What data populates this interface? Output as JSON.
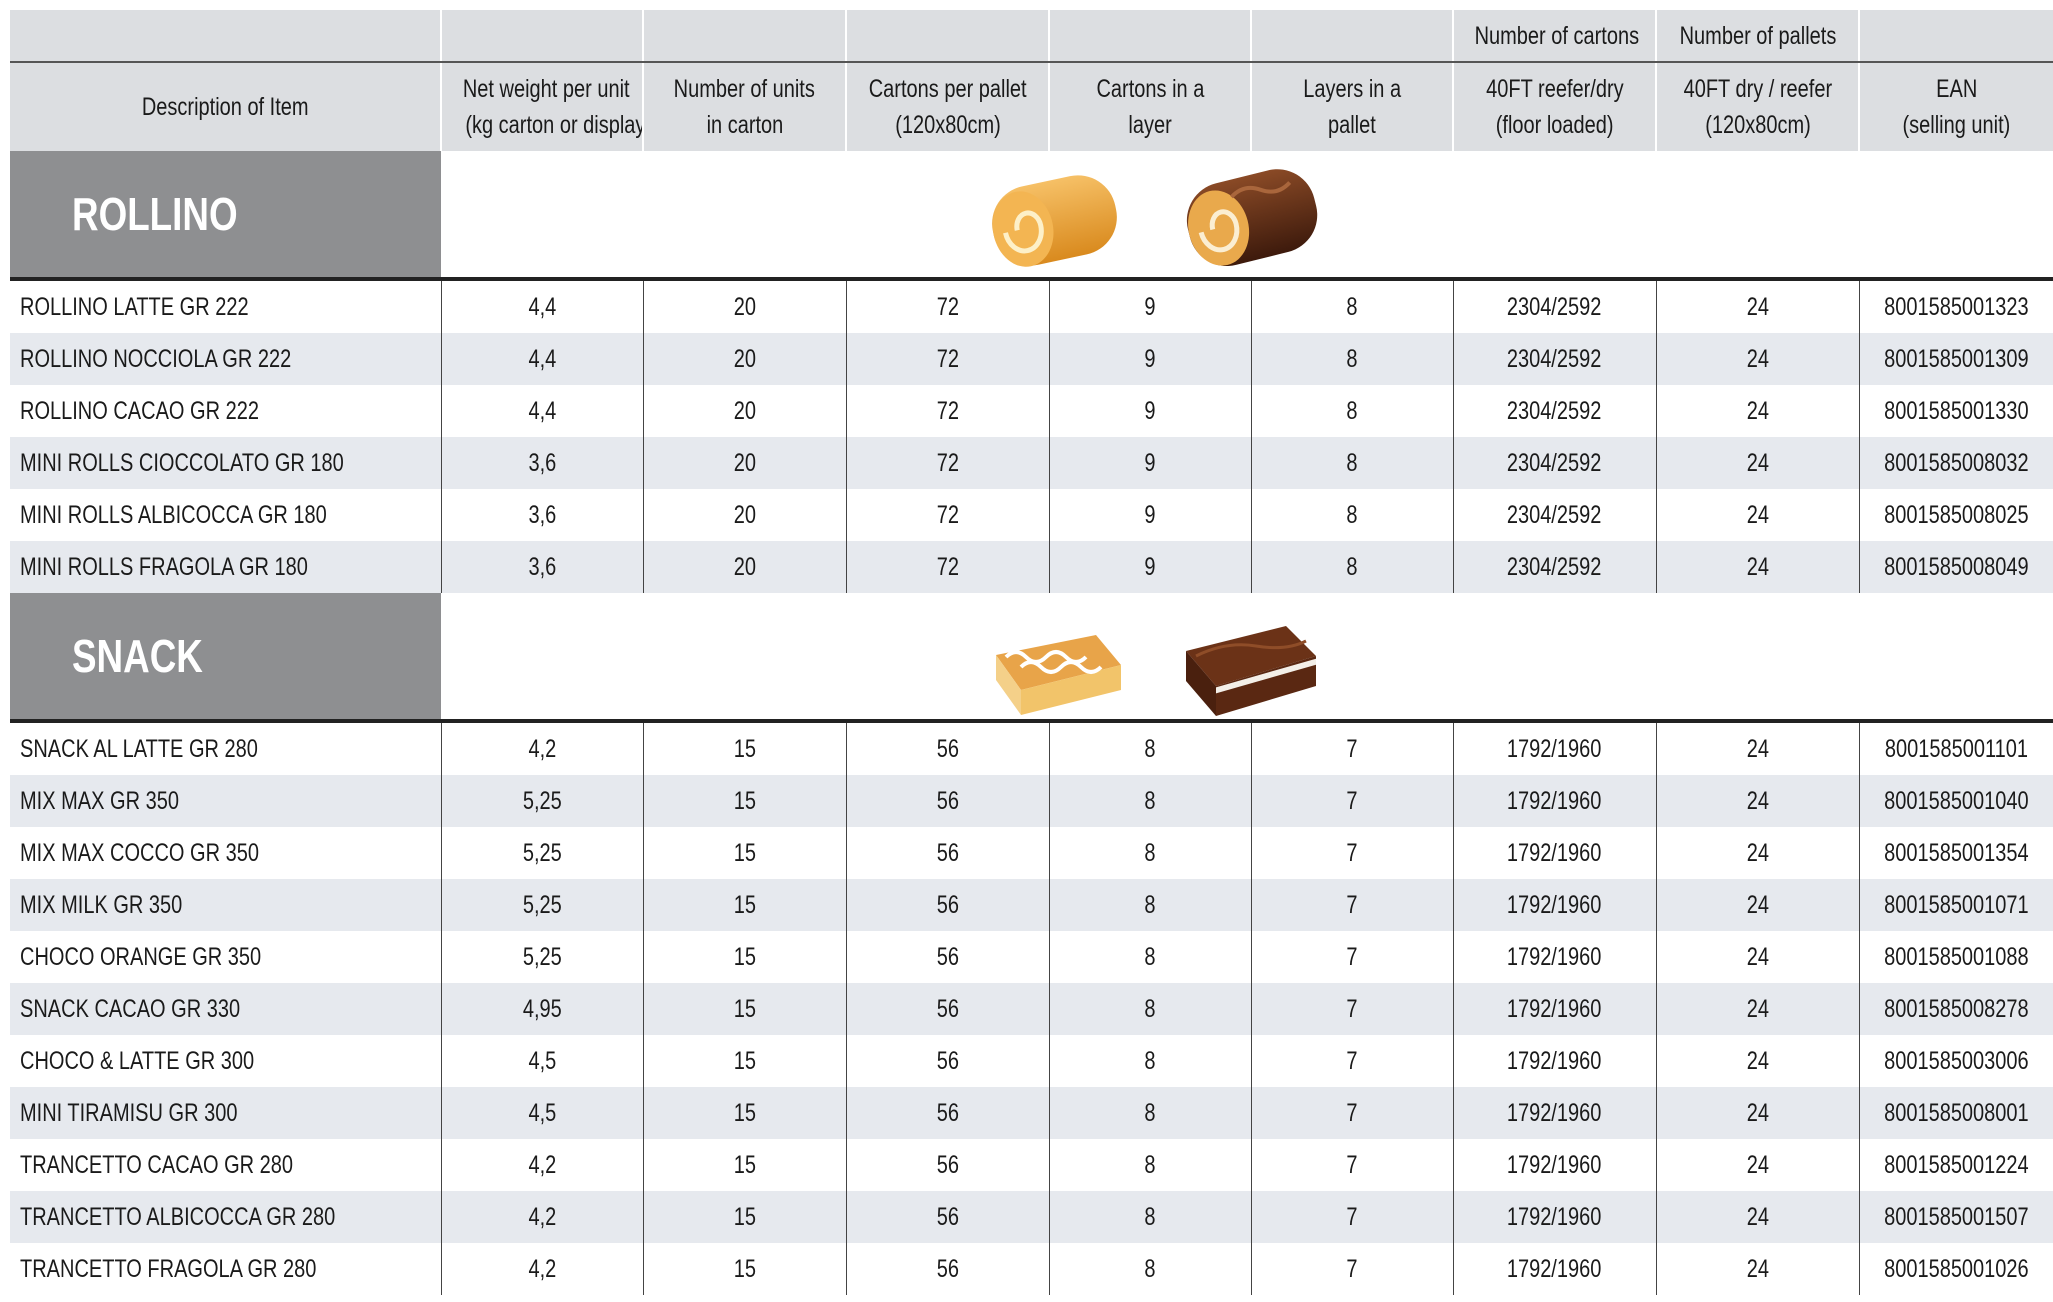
{
  "columns": [
    {
      "lines": [
        "Description of Item"
      ]
    },
    {
      "lines": [
        "Net weight per unit",
        "(kg carton or display)"
      ]
    },
    {
      "lines": [
        "Number of units",
        "in carton"
      ]
    },
    {
      "lines": [
        "Cartons per pallet",
        "(120x80cm)"
      ]
    },
    {
      "lines": [
        "Cartons in a",
        "layer"
      ]
    },
    {
      "lines": [
        "Layers in a",
        "pallet"
      ]
    },
    {
      "group": "Number of cartons",
      "lines": [
        "40FT reefer/dry",
        "(floor loaded)"
      ]
    },
    {
      "group": "Number of pallets",
      "lines": [
        "40FT dry / reefer",
        "(120x80cm)"
      ]
    },
    {
      "lines": [
        "EAN",
        "(selling unit)"
      ]
    }
  ],
  "sections": [
    {
      "title": "ROLLINO",
      "rows": [
        [
          "ROLLINO LATTE GR 222",
          "4,4",
          "20",
          "72",
          "9",
          "8",
          "2304/2592",
          "24",
          "8001585001323"
        ],
        [
          "ROLLINO NOCCIOLA GR 222",
          "4,4",
          "20",
          "72",
          "9",
          "8",
          "2304/2592",
          "24",
          "8001585001309"
        ],
        [
          "ROLLINO CACAO GR 222",
          "4,4",
          "20",
          "72",
          "9",
          "8",
          "2304/2592",
          "24",
          "8001585001330"
        ],
        [
          "MINI ROLLS CIOCCOLATO GR 180",
          "3,6",
          "20",
          "72",
          "9",
          "8",
          "2304/2592",
          "24",
          "8001585008032"
        ],
        [
          "MINI ROLLS ALBICOCCA GR 180",
          "3,6",
          "20",
          "72",
          "9",
          "8",
          "2304/2592",
          "24",
          "8001585008025"
        ],
        [
          "MINI ROLLS FRAGOLA GR 180",
          "3,6",
          "20",
          "72",
          "9",
          "8",
          "2304/2592",
          "24",
          "8001585008049"
        ]
      ]
    },
    {
      "title": "SNACK",
      "rows": [
        [
          "SNACK AL LATTE GR 280",
          "4,2",
          "15",
          "56",
          "8",
          "7",
          "1792/1960",
          "24",
          "8001585001101"
        ],
        [
          "MIX MAX GR 350",
          "5,25",
          "15",
          "56",
          "8",
          "7",
          "1792/1960",
          "24",
          "8001585001040"
        ],
        [
          "MIX MAX COCCO GR 350",
          "5,25",
          "15",
          "56",
          "8",
          "7",
          "1792/1960",
          "24",
          "8001585001354"
        ],
        [
          "MIX MILK GR 350",
          "5,25",
          "15",
          "56",
          "8",
          "7",
          "1792/1960",
          "24",
          "8001585001071"
        ],
        [
          "CHOCO ORANGE GR 350",
          "5,25",
          "15",
          "56",
          "8",
          "7",
          "1792/1960",
          "24",
          "8001585001088"
        ],
        [
          "SNACK CACAO GR 330",
          "4,95",
          "15",
          "56",
          "8",
          "7",
          "1792/1960",
          "24",
          "8001585008278"
        ],
        [
          "CHOCO & LATTE GR 300",
          "4,5",
          "15",
          "56",
          "8",
          "7",
          "1792/1960",
          "24",
          "8001585003006"
        ],
        [
          "MINI TIRAMISU GR 300",
          "4,5",
          "15",
          "56",
          "8",
          "7",
          "1792/1960",
          "24",
          "8001585008001"
        ],
        [
          "TRANCETTO CACAO GR 280",
          "4,2",
          "15",
          "56",
          "8",
          "7",
          "1792/1960",
          "24",
          "8001585001224"
        ],
        [
          "TRANCETTO ALBICOCCA GR 280",
          "4,2",
          "15",
          "56",
          "8",
          "7",
          "1792/1960",
          "24",
          "8001585001507"
        ],
        [
          "TRANCETTO FRAGOLA GR 280",
          "4,2",
          "15",
          "56",
          "8",
          "7",
          "1792/1960",
          "24",
          "8001585001026"
        ]
      ]
    }
  ]
}
